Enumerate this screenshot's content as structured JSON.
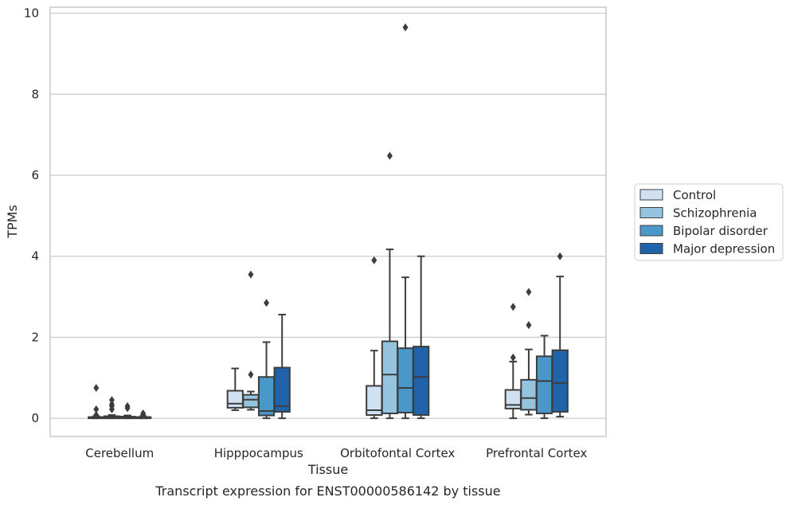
{
  "chart_data": {
    "type": "box",
    "title": "",
    "caption": "Transcript expression for ENST00000586142 by tissue",
    "xlabel": "Tissue",
    "ylabel": "TPMs",
    "ylim": [
      -0.45,
      10.15
    ],
    "yticks": [
      0,
      2,
      4,
      6,
      8,
      10
    ],
    "grid": "horizontal",
    "legend_position": "right",
    "categories": [
      "Cerebellum",
      "Hipppocampus",
      "Orbitofontal Cortex",
      "Prefrontal Cortex"
    ],
    "series": [
      {
        "name": "Control",
        "color": "#d0e1f2",
        "boxes": [
          {
            "whislo": 0,
            "q1": 0,
            "med": 0.01,
            "q3": 0.03,
            "whishi": 0.05,
            "fliers": [
              0.08,
              0.22,
              0.75
            ]
          },
          {
            "whislo": 0.2,
            "q1": 0.26,
            "med": 0.36,
            "q3": 0.68,
            "whishi": 1.23,
            "fliers": []
          },
          {
            "whislo": 0,
            "q1": 0.08,
            "med": 0.2,
            "q3": 0.8,
            "whishi": 1.67,
            "fliers": [
              3.9
            ]
          },
          {
            "whislo": 0,
            "q1": 0.24,
            "med": 0.33,
            "q3": 0.7,
            "whishi": 1.4,
            "fliers": [
              1.5,
              2.75
            ]
          }
        ]
      },
      {
        "name": "Schizophrenia",
        "color": "#94c4df",
        "boxes": [
          {
            "whislo": 0,
            "q1": 0,
            "med": 0.02,
            "q3": 0.05,
            "whishi": 0.08,
            "fliers": [
              0.22,
              0.3,
              0.35,
              0.45
            ]
          },
          {
            "whislo": 0.21,
            "q1": 0.27,
            "med": 0.46,
            "q3": 0.58,
            "whishi": 0.66,
            "fliers": [
              1.08,
              3.55
            ]
          },
          {
            "whislo": 0,
            "q1": 0.12,
            "med": 1.08,
            "q3": 1.9,
            "whishi": 4.17,
            "fliers": [
              6.48
            ]
          },
          {
            "whislo": 0.09,
            "q1": 0.21,
            "med": 0.5,
            "q3": 0.95,
            "whishi": 1.7,
            "fliers": [
              2.3,
              3.12
            ]
          }
        ]
      },
      {
        "name": "Bipolar disorder",
        "color": "#4a98c9",
        "boxes": [
          {
            "whislo": 0,
            "q1": 0,
            "med": 0.02,
            "q3": 0.04,
            "whishi": 0.07,
            "fliers": [
              0.25,
              0.3
            ]
          },
          {
            "whislo": 0,
            "q1": 0.07,
            "med": 0.18,
            "q3": 1.02,
            "whishi": 1.88,
            "fliers": [
              2.85
            ]
          },
          {
            "whislo": 0,
            "q1": 0.14,
            "med": 0.75,
            "q3": 1.73,
            "whishi": 3.48,
            "fliers": [
              9.65
            ]
          },
          {
            "whislo": 0,
            "q1": 0.12,
            "med": 0.92,
            "q3": 1.53,
            "whishi": 2.04,
            "fliers": []
          }
        ]
      },
      {
        "name": "Major depression",
        "color": "#2163aa",
        "boxes": [
          {
            "whislo": 0,
            "q1": 0,
            "med": 0.01,
            "q3": 0.03,
            "whishi": 0.05,
            "fliers": [
              0.08,
              0.12
            ]
          },
          {
            "whislo": 0,
            "q1": 0.16,
            "med": 0.3,
            "q3": 1.25,
            "whishi": 2.56,
            "fliers": []
          },
          {
            "whislo": 0,
            "q1": 0.08,
            "med": 1.02,
            "q3": 1.77,
            "whishi": 4.0,
            "fliers": []
          },
          {
            "whislo": 0.04,
            "q1": 0.16,
            "med": 0.87,
            "q3": 1.68,
            "whishi": 3.5,
            "fliers": [
              4.0
            ]
          }
        ]
      }
    ]
  }
}
